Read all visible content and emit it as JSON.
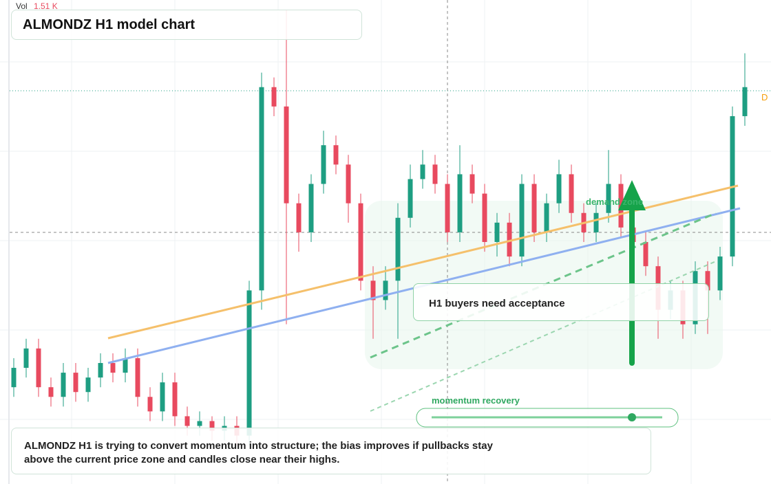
{
  "volume": {
    "label": "Vol",
    "value": "1.51 K"
  },
  "price_tag": "D",
  "chart_data": {
    "type": "candlestick",
    "title": "ALMONDZ H1 model chart",
    "ylim": [
      0,
      100
    ],
    "up_color": "#1e9e82",
    "down_color": "#e84a5f",
    "open": [
      20,
      24,
      28,
      20,
      18,
      23,
      19,
      22,
      25,
      23,
      26,
      18,
      15,
      21,
      14,
      12,
      13,
      11,
      12,
      10,
      40,
      82,
      78,
      58,
      52,
      62,
      70,
      66,
      58,
      42,
      38,
      42,
      55,
      63,
      66,
      62,
      52,
      64,
      60,
      50,
      54,
      47,
      62,
      52,
      58,
      64,
      56,
      52,
      56,
      62,
      53,
      50,
      45,
      36,
      40,
      33,
      44,
      40,
      47,
      76
    ],
    "high": [
      26,
      30,
      30,
      22,
      25,
      25,
      24,
      27,
      27,
      28,
      28,
      20,
      23,
      23,
      16,
      15,
      14,
      14,
      14,
      42,
      85,
      84,
      98,
      60,
      64,
      73,
      72,
      68,
      60,
      45,
      45,
      58,
      66,
      69,
      68,
      64,
      70,
      66,
      62,
      56,
      56,
      64,
      64,
      60,
      67,
      66,
      58,
      58,
      69,
      64,
      55,
      52,
      47,
      42,
      42,
      46,
      46,
      49,
      78,
      89
    ],
    "low": [
      18,
      22,
      18,
      16,
      16,
      17,
      17,
      20,
      21,
      21,
      16,
      13,
      13,
      12,
      10,
      10,
      9,
      9,
      8,
      8,
      36,
      76,
      33,
      48,
      50,
      60,
      64,
      54,
      40,
      30,
      36,
      30,
      53,
      61,
      60,
      50,
      50,
      58,
      48,
      47,
      45,
      45,
      50,
      50,
      56,
      54,
      50,
      50,
      54,
      51,
      48,
      43,
      30,
      34,
      30,
      31,
      31,
      38,
      45,
      74
    ],
    "close": [
      24,
      28,
      20,
      18,
      23,
      19,
      22,
      25,
      23,
      26,
      18,
      15,
      21,
      14,
      12,
      13,
      11,
      12,
      10,
      40,
      82,
      78,
      58,
      52,
      62,
      70,
      66,
      58,
      42,
      38,
      42,
      55,
      63,
      66,
      62,
      52,
      64,
      60,
      50,
      54,
      47,
      62,
      52,
      58,
      64,
      56,
      52,
      56,
      62,
      53,
      50,
      45,
      36,
      40,
      33,
      44,
      40,
      47,
      76,
      82
    ]
  },
  "annotations": {
    "zone": "demand zone",
    "callout": "H1 buyers need acceptance",
    "slider_label": "momentum recovery"
  },
  "summary": "ALMONDZ H1 is trying to convert momentum into structure; the bias improves if pullbacks stay above the current price zone and candles close near their highs."
}
